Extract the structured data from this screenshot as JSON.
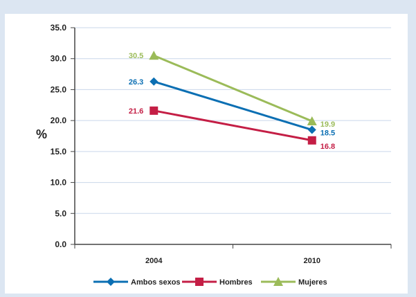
{
  "chart_data": {
    "type": "line",
    "categories": [
      "2004",
      "2010"
    ],
    "series": [
      {
        "name": "Ambos sexos",
        "values": [
          26.3,
          18.5
        ],
        "labels": [
          "26.3",
          "18.5"
        ],
        "color": "#0b6fb3",
        "marker": "diamond"
      },
      {
        "name": "Hombres",
        "values": [
          21.6,
          16.8
        ],
        "labels": [
          "21.6",
          "16.8"
        ],
        "color": "#c41e45",
        "marker": "square"
      },
      {
        "name": "Mujeres",
        "values": [
          30.5,
          19.9
        ],
        "labels": [
          "30.5",
          "19.9"
        ],
        "color": "#9bbb59",
        "marker": "triangle"
      }
    ],
    "ylabel": "%",
    "ylim": [
      0,
      35
    ],
    "yticks": [
      "0.0",
      "5.0",
      "10.0",
      "15.0",
      "20.0",
      "25.0",
      "30.0",
      "35.0"
    ],
    "grid": true,
    "legend": "bottom"
  }
}
